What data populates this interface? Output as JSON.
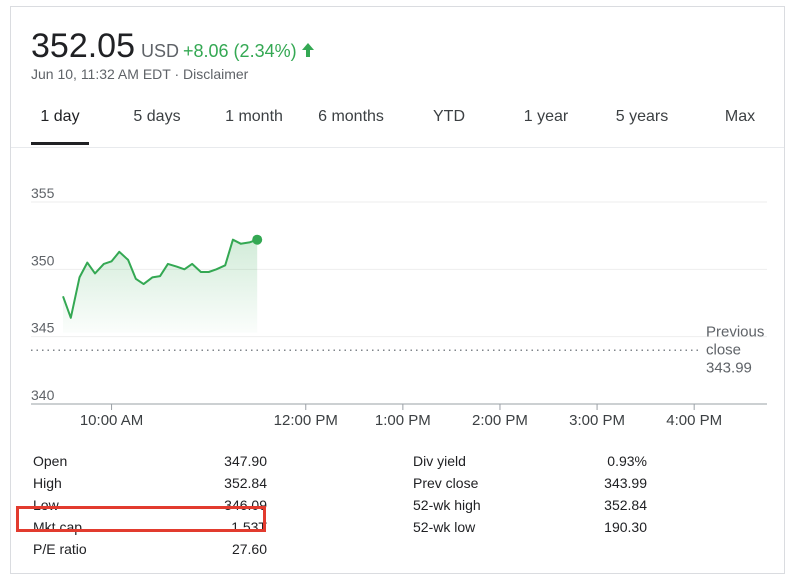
{
  "quote": {
    "price": "352.05",
    "currency": "USD",
    "change": "+8.06 (2.34%)",
    "timestamp": "Jun 10, 11:32 AM EDT · Disclaimer",
    "arrow_icon": "arrow-up-icon",
    "positive_color": "#34a853"
  },
  "tabs": [
    {
      "label": "1 day",
      "active": true
    },
    {
      "label": "5 days"
    },
    {
      "label": "1 month"
    },
    {
      "label": "6 months"
    },
    {
      "label": "YTD"
    },
    {
      "label": "1 year"
    },
    {
      "label": "5 years"
    },
    {
      "label": "Max"
    }
  ],
  "chart_data": {
    "type": "line",
    "y_ticks": [
      "355",
      "350",
      "345",
      "340"
    ],
    "ylim": [
      340,
      355
    ],
    "x_ticks": [
      "10:00 AM",
      "12:00 PM",
      "1:00 PM",
      "2:00 PM",
      "3:00 PM",
      "4:00 PM"
    ],
    "x_tick_hours": [
      10,
      12,
      13,
      14,
      15,
      16
    ],
    "xlim": [
      9.5,
      16.75
    ],
    "series": [
      {
        "x": [
          9.5,
          9.58,
          9.67,
          9.75,
          9.83,
          9.92,
          10.0,
          10.08,
          10.17,
          10.25,
          10.33,
          10.42,
          10.5,
          10.58,
          10.67,
          10.75,
          10.83,
          10.92,
          11.0,
          11.08,
          11.17,
          11.25,
          11.33,
          11.42,
          11.5
        ],
        "y": [
          348.0,
          346.4,
          349.4,
          350.5,
          349.7,
          350.4,
          350.6,
          351.3,
          350.7,
          349.3,
          348.9,
          349.4,
          349.5,
          350.4,
          350.2,
          350.0,
          350.4,
          349.8,
          349.8,
          350.0,
          350.3,
          352.2,
          351.9,
          352.0,
          352.2
        ],
        "color": "#34a853"
      }
    ],
    "prev_close": 343.99,
    "prev_close_label": [
      "Previous",
      "close",
      "343.99"
    ],
    "grid": true
  },
  "stats": {
    "left": [
      {
        "label": "Open",
        "value": "347.90"
      },
      {
        "label": "High",
        "value": "352.84"
      },
      {
        "label": "Low",
        "value": "346.09"
      },
      {
        "label": "Mkt cap",
        "value": "1.53T"
      },
      {
        "label": "P/E ratio",
        "value": "27.60"
      }
    ],
    "right": [
      {
        "label": "Div yield",
        "value": "0.93%"
      },
      {
        "label": "Prev close",
        "value": "343.99"
      },
      {
        "label": "52-wk high",
        "value": "352.84"
      },
      {
        "label": "52-wk low",
        "value": "190.30"
      }
    ],
    "highlight_color": "#e23b2e"
  }
}
